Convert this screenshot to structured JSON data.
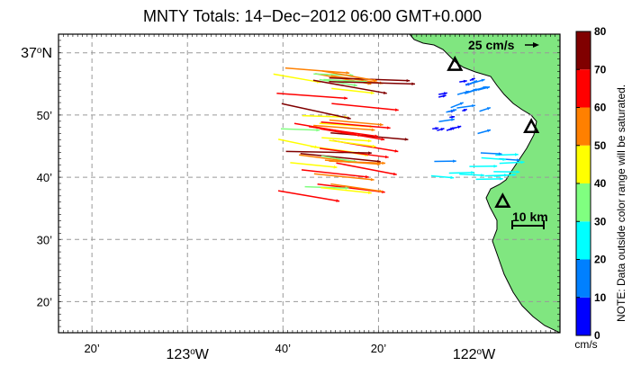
{
  "title": "MNTY Totals: 14−Dec−2012 06:00 GMT+0.000",
  "lat_ticks": [
    {
      "label": "37",
      "hemi": "N",
      "value": 37.0
    },
    {
      "label": "50’",
      "value": 36.8333
    },
    {
      "label": "40’",
      "value": 36.6667
    },
    {
      "label": "30’",
      "value": 36.5
    },
    {
      "label": "20’",
      "value": 36.3333
    }
  ],
  "lon_ticks": [
    {
      "label": "20’",
      "value": -123.3333
    },
    {
      "label": "123",
      "hemi": "W",
      "value": -123.0
    },
    {
      "label": "40’",
      "value": -122.6667
    },
    {
      "label": "20’",
      "value": -122.3333
    },
    {
      "label": "122",
      "hemi": "W",
      "value": -122.0
    }
  ],
  "extent": {
    "lon_min": -123.45,
    "lon_max": -121.7,
    "lat_min": 36.25,
    "lat_max": 37.05
  },
  "scale_arrow": {
    "label": "25 cm/s",
    "speed": 25
  },
  "scale_bar": {
    "label": "10 km",
    "km": 10
  },
  "colorbar": {
    "ticks": [
      "0",
      "10",
      "20",
      "30",
      "40",
      "50",
      "60",
      "70",
      "80"
    ],
    "unit": "cm/s",
    "note": "NOTE: Data outside color range will be saturated.",
    "min": 0,
    "max": 80,
    "colors": [
      "#0000ff",
      "#0080ff",
      "#00ffff",
      "#80ff80",
      "#ffff00",
      "#ff8000",
      "#ff0000",
      "#800000"
    ]
  },
  "land_color": "#80e680",
  "stations": [
    {
      "lon": -122.0667,
      "lat": 36.9667
    },
    {
      "lon": -121.8,
      "lat": 36.8
    },
    {
      "lon": -121.9,
      "lat": 36.6
    }
  ],
  "vector_groups": [
    {
      "lon_range": [
        -122.7,
        -122.48
      ],
      "lat_range": [
        36.63,
        36.97
      ],
      "speed_range": [
        35,
        78
      ],
      "dir_deg": 162,
      "count": 48
    },
    {
      "lon_range": [
        -122.16,
        -121.98
      ],
      "lat_range": [
        36.78,
        36.93
      ],
      "speed_range": [
        5,
        18
      ],
      "dir_deg": 215,
      "count": 26
    },
    {
      "lon_range": [
        -122.15,
        -121.9
      ],
      "lat_range": [
        36.66,
        36.74
      ],
      "speed_range": [
        18,
        26
      ],
      "dir_deg": 180,
      "count": 14
    }
  ]
}
